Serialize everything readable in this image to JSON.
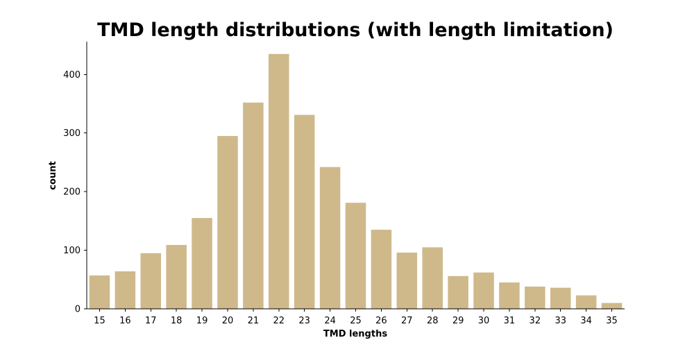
{
  "chart_data": {
    "type": "bar",
    "title": "TMD length distributions (with length limitation)",
    "xlabel": "TMD lengths",
    "ylabel": "count",
    "categories": [
      "15",
      "16",
      "17",
      "18",
      "19",
      "20",
      "21",
      "22",
      "23",
      "24",
      "25",
      "26",
      "27",
      "28",
      "29",
      "30",
      "31",
      "32",
      "33",
      "34",
      "35"
    ],
    "values": [
      57,
      64,
      95,
      109,
      155,
      295,
      352,
      435,
      331,
      242,
      181,
      135,
      96,
      105,
      56,
      62,
      45,
      38,
      36,
      23,
      10
    ],
    "ylim": [
      0,
      456
    ],
    "yticks": [
      0,
      100,
      200,
      300,
      400
    ],
    "grid": false,
    "legend": "none",
    "bar_color": "#cfb98b"
  }
}
